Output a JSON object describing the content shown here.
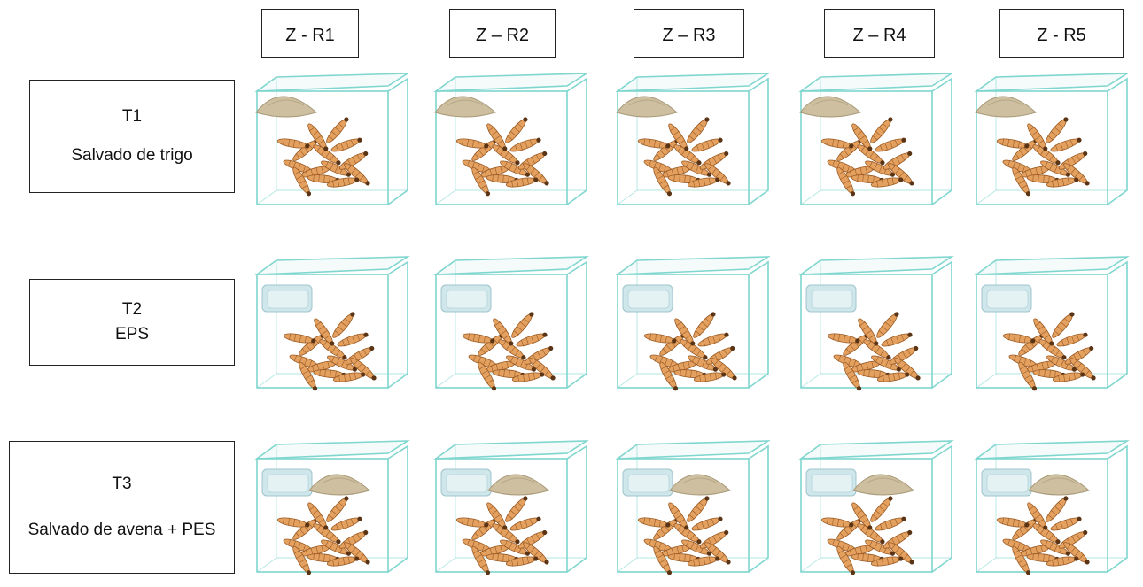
{
  "columns": [
    "Z - R1",
    "Z – R2",
    "Z – R3",
    "Z – R4",
    "Z - R5"
  ],
  "rows": [
    {
      "code": "T1",
      "desc": "Salvado de trigo",
      "contents": [
        "bran"
      ]
    },
    {
      "code": "T2",
      "desc": "EPS",
      "contents": [
        "foam"
      ]
    },
    {
      "code": "T3",
      "desc": "Salvado de avena + PES",
      "contents": [
        "foam",
        "bran"
      ]
    }
  ],
  "colors": {
    "glass": "#7fd6cf",
    "bran": "#cdbf9f",
    "foam": "#cfe6ea",
    "larva": "#e3a05f"
  }
}
